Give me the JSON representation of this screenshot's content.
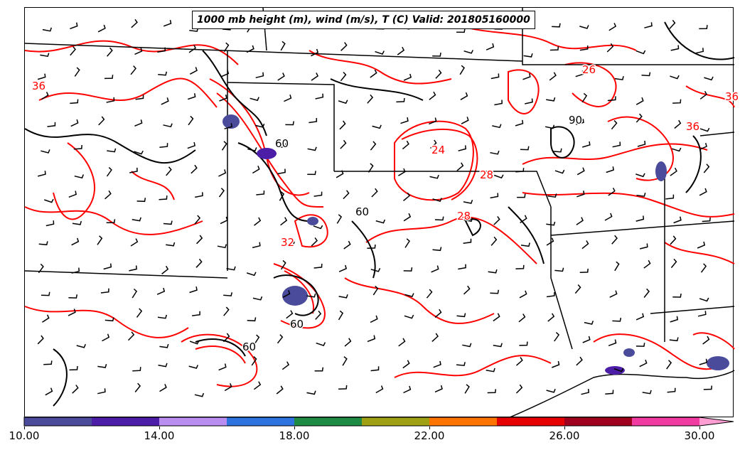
{
  "map": {
    "title": "1000 mb height (m), wind (m/s), T (C) Valid: 201805160000",
    "layers": [
      "temperature-contours",
      "height-contours",
      "wind-barbs",
      "state-borders",
      "coastline",
      "shaded-field"
    ],
    "colors": {
      "temperature_contour": "#ff0000",
      "height_contour": "#000000",
      "border": "#000000"
    },
    "temperature_labels": [
      {
        "text": "36"
      },
      {
        "text": "24"
      },
      {
        "text": "28"
      },
      {
        "text": "28"
      },
      {
        "text": "36"
      },
      {
        "text": "26"
      },
      {
        "text": "36"
      },
      {
        "text": "32"
      }
    ],
    "height_labels": [
      {
        "text": "60"
      },
      {
        "text": "60"
      },
      {
        "text": "60"
      },
      {
        "text": "90"
      },
      {
        "text": "60"
      }
    ]
  },
  "colorbar": {
    "colors": [
      "#4b4b9b",
      "#4c1ea8",
      "#b98ef0",
      "#2f73e0",
      "#1f8a44",
      "#a0a014",
      "#ff7300",
      "#e60000",
      "#a0001e",
      "#f03ca0",
      "#ff9ed2"
    ],
    "tick_labels": [
      "10.00",
      "14.00",
      "18.00",
      "22.00",
      "26.00",
      "30.00"
    ],
    "range": [
      10,
      31
    ],
    "extend": "max"
  }
}
